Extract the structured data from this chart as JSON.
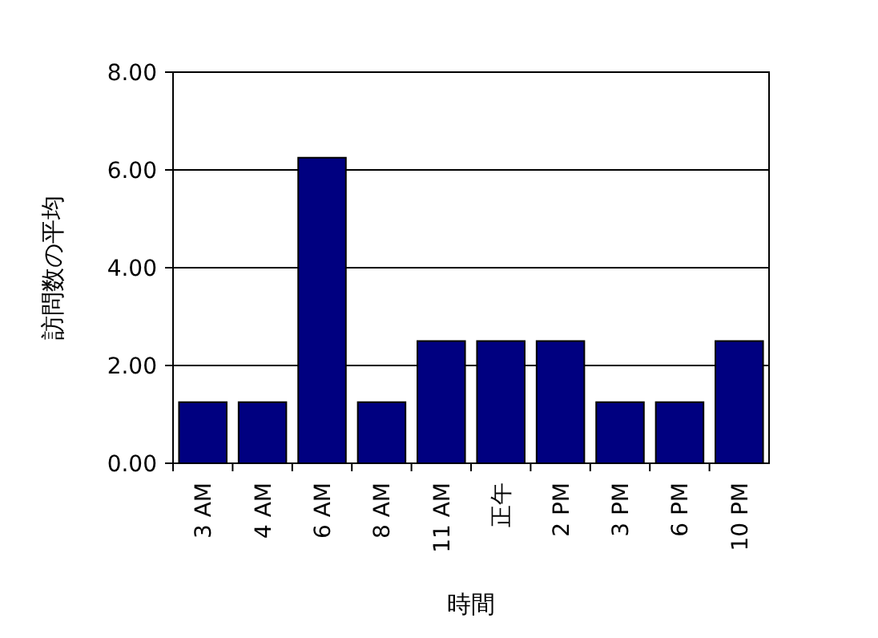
{
  "chart_data": {
    "type": "bar",
    "xlabel": "時間",
    "ylabel": "訪問数の平均",
    "categories": [
      "3 AM",
      "4 AM",
      "6 AM",
      "8 AM",
      "11 AM",
      "正午",
      "2 PM",
      "3 PM",
      "6 PM",
      "10 PM"
    ],
    "values": [
      1.25,
      1.25,
      6.25,
      1.25,
      2.5,
      2.5,
      2.5,
      1.25,
      1.25,
      2.5
    ],
    "color": "#000080",
    "ylim": [
      0,
      8
    ],
    "yticks": [
      {
        "value": 0,
        "label": "0.00"
      },
      {
        "value": 2,
        "label": "2.00"
      },
      {
        "value": 4,
        "label": "4.00"
      },
      {
        "value": 6,
        "label": "6.00"
      },
      {
        "value": 8,
        "label": "8.00"
      }
    ],
    "grid": "y"
  }
}
